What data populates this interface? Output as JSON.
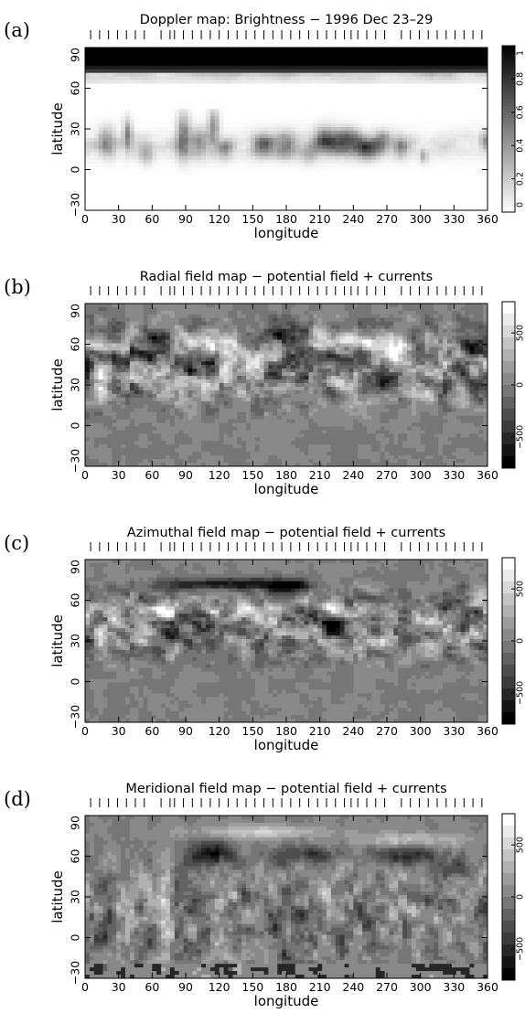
{
  "panels": [
    {
      "label": "(a)",
      "title": "Doppler map: Brightness − 1996 Dec 23–29",
      "kind": "brightness",
      "colorbar_ticks": [
        "0",
        "0.2",
        "0.4",
        "0.6",
        "0.8",
        "1"
      ],
      "colorbar_values": [
        0,
        0.2,
        0.4,
        0.6,
        0.8,
        1
      ],
      "colorbar_range": [
        0,
        1
      ]
    },
    {
      "label": "(b)",
      "title": "Radial field map − potential field + currents",
      "kind": "radial",
      "colorbar_ticks": [
        "−500",
        "0",
        "500"
      ],
      "colorbar_values": [
        -500,
        0,
        500
      ],
      "colorbar_range": [
        -800,
        800
      ]
    },
    {
      "label": "(c)",
      "title": "Azimuthal field map − potential field + currents",
      "kind": "azimuthal",
      "colorbar_ticks": [
        "−500",
        "0",
        "500"
      ],
      "colorbar_values": [
        -500,
        0,
        500
      ],
      "colorbar_range": [
        -800,
        800
      ]
    },
    {
      "label": "(d)",
      "title": "Meridional field map − potential field + currents",
      "kind": "meridional",
      "colorbar_ticks": [
        "−500",
        "0",
        "500"
      ],
      "colorbar_values": [
        -500,
        0,
        500
      ],
      "colorbar_range": [
        -800,
        800
      ]
    }
  ],
  "chart_data": {
    "type": "heatmap",
    "xlabel": "longitude",
    "ylabel": "latitude",
    "xlim": [
      0,
      360
    ],
    "ylim": [
      -30,
      90
    ],
    "x_ticks": [
      0,
      30,
      60,
      90,
      120,
      150,
      180,
      210,
      240,
      270,
      300,
      330,
      360
    ],
    "y_ticks": [
      -30,
      0,
      30,
      60,
      90
    ],
    "observation_phase_longitudes": [
      5,
      13,
      21,
      29,
      37,
      45,
      53,
      68,
      76,
      80,
      88,
      96,
      104,
      112,
      120,
      128,
      136,
      144,
      152,
      160,
      168,
      176,
      184,
      192,
      200,
      208,
      216,
      224,
      232,
      238,
      244,
      252,
      260,
      268,
      283,
      291,
      299,
      307,
      315,
      323,
      331,
      339,
      347,
      355
    ],
    "colormap": "grayscale",
    "colorbar_levels": 14
  }
}
